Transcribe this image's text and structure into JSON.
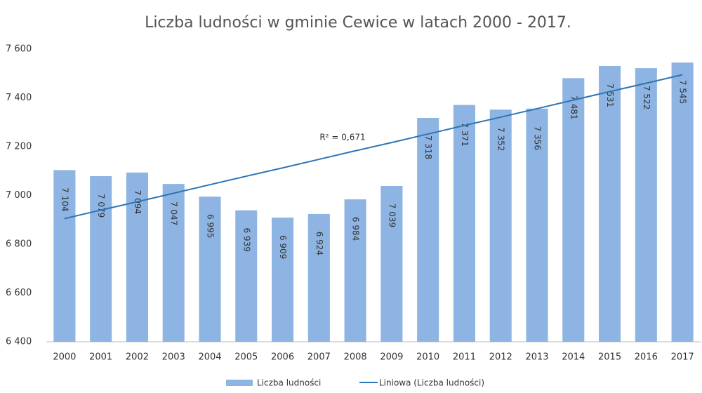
{
  "chart_data": {
    "type": "bar",
    "title": "Liczba ludności w gminie Cewice w latach 2000 - 2017.",
    "categories": [
      "2000",
      "2001",
      "2002",
      "2003",
      "2004",
      "2005",
      "2006",
      "2007",
      "2008",
      "2009",
      "2010",
      "2011",
      "2012",
      "2013",
      "2014",
      "2015",
      "2016",
      "2017"
    ],
    "series": [
      {
        "name": "Liczba ludności",
        "color": "#8db4e2",
        "values": [
          7104,
          7079,
          7094,
          7047,
          6995,
          6939,
          6909,
          6924,
          6984,
          7039,
          7318,
          7371,
          7352,
          7356,
          7481,
          7531,
          7522,
          7545
        ],
        "value_labels": [
          "7 104",
          "7 079",
          "7 094",
          "7 047",
          "6 995",
          "6 939",
          "6 909",
          "6 924",
          "6 984",
          "7 039",
          "7 318",
          "7 371",
          "7 352",
          "7 356",
          "7 481",
          "7 531",
          "7 522",
          "7 545"
        ]
      },
      {
        "name": "Liniowa (Liczba ludności)",
        "type": "line",
        "color": "#2e75b6",
        "values": [
          6905,
          6940,
          6974,
          7009,
          7044,
          7079,
          7113,
          7148,
          7183,
          7217,
          7252,
          7287,
          7321,
          7356,
          7391,
          7426,
          7460,
          7495
        ]
      }
    ],
    "annotation": "R² = 0,671",
    "ylim": [
      6400,
      7600
    ],
    "yticks": [
      {
        "value": 6400,
        "label": "6 400"
      },
      {
        "value": 6600,
        "label": "6 600"
      },
      {
        "value": 6800,
        "label": "6 800"
      },
      {
        "value": 7000,
        "label": "7 000"
      },
      {
        "value": 7200,
        "label": "7 200"
      },
      {
        "value": 7400,
        "label": "7 400"
      },
      {
        "value": 7600,
        "label": "7 600"
      }
    ],
    "legend": "bottom",
    "grid": false
  }
}
